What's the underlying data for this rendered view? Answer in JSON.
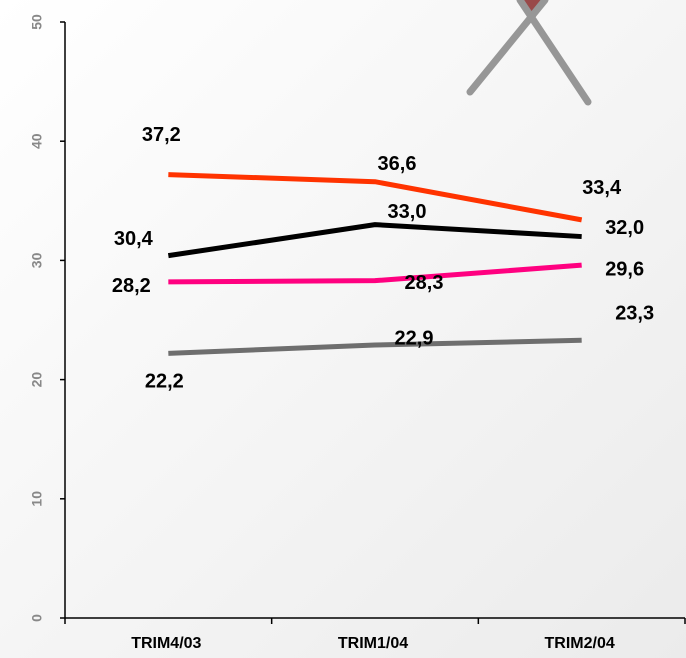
{
  "chart_data": {
    "type": "line",
    "categories": [
      "TRIM4/03",
      "TRIM1/04",
      "TRIM2/04"
    ],
    "series": [
      {
        "color": "#ff3300",
        "values": [
          37.2,
          36.6,
          33.4
        ],
        "value_labels": [
          "37,2",
          "36,6",
          "33,4"
        ]
      },
      {
        "color": "#000000",
        "values": [
          30.4,
          33.0,
          32.0
        ],
        "value_labels": [
          "30,4",
          "33,0",
          "32,0"
        ]
      },
      {
        "color": "#ff0080",
        "values": [
          28.2,
          28.3,
          29.6
        ],
        "value_labels": [
          "28,2",
          "28,3",
          "29,6"
        ]
      },
      {
        "color": "#6e6e6e",
        "values": [
          22.2,
          22.9,
          23.3
        ],
        "value_labels": [
          "22,2",
          "22,9",
          "23,3"
        ]
      }
    ],
    "ylim": [
      0,
      50
    ],
    "yticks": [
      0,
      10,
      20,
      30,
      40,
      50
    ]
  }
}
